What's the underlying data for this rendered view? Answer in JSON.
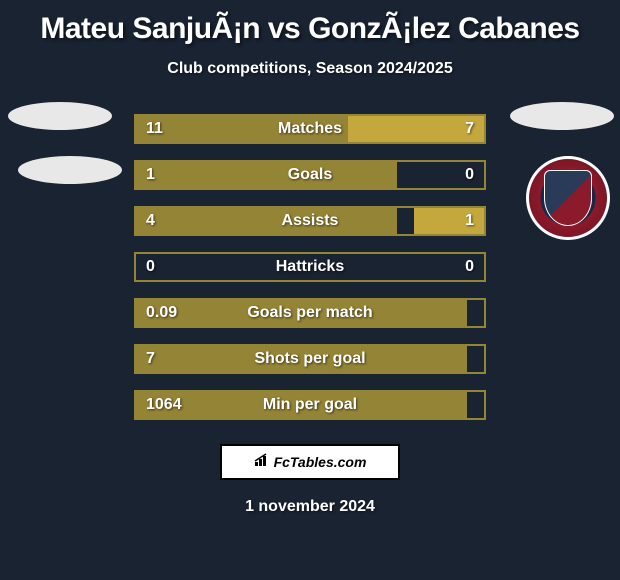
{
  "title": "Mateu SanjuÃ¡n vs GonzÃ¡lez Cabanes",
  "subtitle": "Club competitions, Season 2024/2025",
  "footer_brand": "FcTables.com",
  "footer_date": "1 november 2024",
  "colors": {
    "background": "#1a2332",
    "bar_border": "#948436",
    "bar_left": "#948436",
    "bar_right": "#c4a83e",
    "text": "#ffffff",
    "avatar": "#e8e8e8"
  },
  "stats": [
    {
      "label": "Matches",
      "left_val": "11",
      "right_val": "7",
      "left_pct": 61,
      "right_pct": 39
    },
    {
      "label": "Goals",
      "left_val": "1",
      "right_val": "0",
      "left_pct": 75,
      "right_pct": 0
    },
    {
      "label": "Assists",
      "left_val": "4",
      "right_val": "1",
      "left_pct": 75,
      "right_pct": 20
    },
    {
      "label": "Hattricks",
      "left_val": "0",
      "right_val": "0",
      "left_pct": 0,
      "right_pct": 0
    },
    {
      "label": "Goals per match",
      "left_val": "0.09",
      "right_val": "",
      "left_pct": 95,
      "right_pct": 0
    },
    {
      "label": "Shots per goal",
      "left_val": "7",
      "right_val": "",
      "left_pct": 95,
      "right_pct": 0
    },
    {
      "label": "Min per goal",
      "left_val": "1064",
      "right_val": "",
      "left_pct": 95,
      "right_pct": 0
    }
  ],
  "badge": {
    "name": "S.D. Huesca"
  }
}
